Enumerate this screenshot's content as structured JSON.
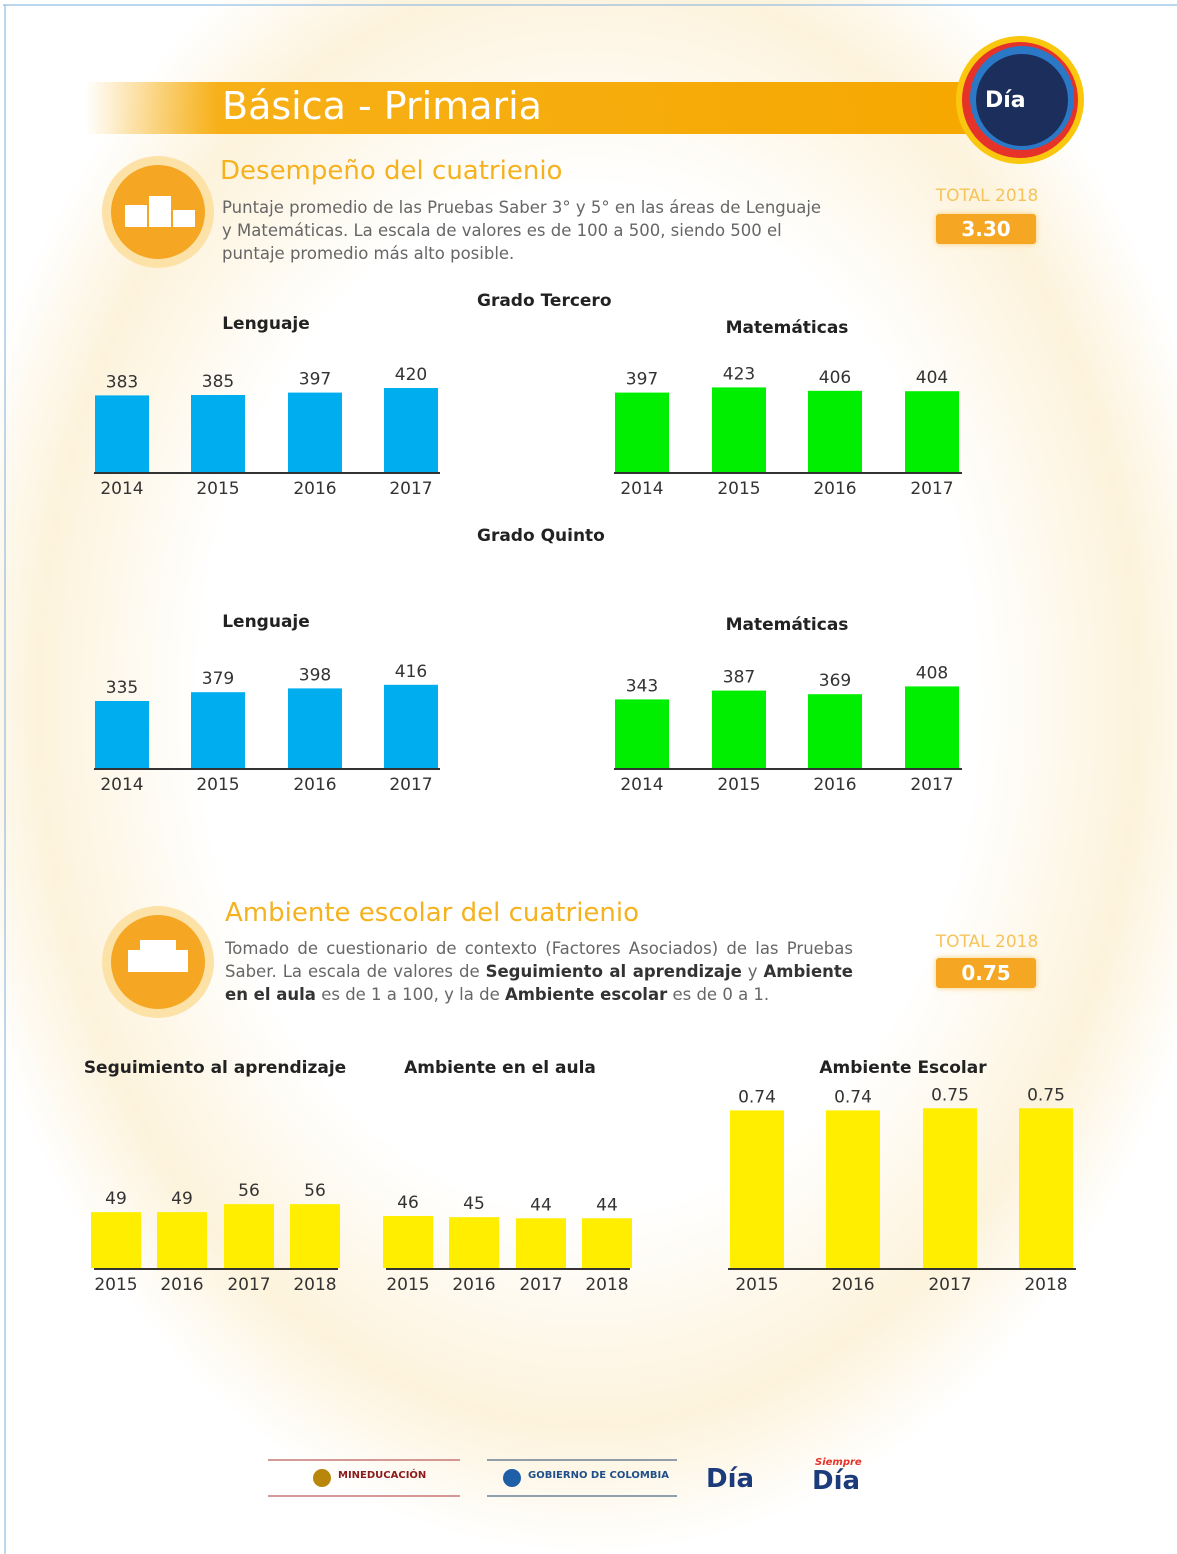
{
  "header": {
    "title": "Básica - Primaria",
    "logo": "Día"
  },
  "sections": [
    {
      "title": "Desempeño del cuatrienio",
      "description": [
        {
          "text": "Puntaje promedio de las Pruebas Saber 3° y 5° en las áreas de Lenguaje y Matemáticas. La escala de valores es de 100 a 500, siendo 500 el puntaje promedio más alto posible.",
          "bold": false
        }
      ],
      "total_label": "TOTAL 2018",
      "total_value": "3.30"
    },
    {
      "title": "Ambiente escolar del cuatrienio",
      "description": [
        {
          "text": "Tomado de cuestionario de contexto (Factores Asociados) de las Pruebas Saber. La escala de valores de ",
          "bold": false
        },
        {
          "text": "Seguimiento al aprendizaje",
          "bold": true
        },
        {
          "text": " y ",
          "bold": false
        },
        {
          "text": "Ambiente en el aula",
          "bold": true
        },
        {
          "text": " es de 1 a 100, y la de ",
          "bold": false
        },
        {
          "text": "Ambiente escolar",
          "bold": true
        },
        {
          "text": " es de 0 a 1.",
          "bold": false
        }
      ],
      "total_label": "TOTAL 2018",
      "total_value": "0.75"
    }
  ],
  "grades": [
    "Grado Tercero",
    "Grado Quinto"
  ],
  "chart_data": [
    {
      "type": "bar",
      "title": "Lenguaje",
      "categories": [
        "2014",
        "2015",
        "2016",
        "2017"
      ],
      "values": [
        383,
        385,
        397,
        420
      ],
      "color": "#00aeef"
    },
    {
      "type": "bar",
      "title": "Matemáticas",
      "categories": [
        "2014",
        "2015",
        "2016",
        "2017"
      ],
      "values": [
        397,
        423,
        406,
        404
      ],
      "color": "#00ee00"
    },
    {
      "type": "bar",
      "title": "Lenguaje",
      "categories": [
        "2014",
        "2015",
        "2016",
        "2017"
      ],
      "values": [
        335,
        379,
        398,
        416
      ],
      "color": "#00aeef"
    },
    {
      "type": "bar",
      "title": "Matemáticas",
      "categories": [
        "2014",
        "2015",
        "2016",
        "2017"
      ],
      "values": [
        343,
        387,
        369,
        408
      ],
      "color": "#00ee00"
    },
    {
      "type": "bar",
      "title": "Seguimiento al aprendizaje",
      "categories": [
        "2015",
        "2016",
        "2017",
        "2018"
      ],
      "values": [
        49,
        49,
        56,
        56
      ],
      "color": "#ffee00"
    },
    {
      "type": "bar",
      "title": "Ambiente en el aula",
      "categories": [
        "2015",
        "2016",
        "2017",
        "2018"
      ],
      "values": [
        46,
        45,
        44,
        44
      ],
      "color": "#ffee00"
    },
    {
      "type": "bar",
      "title": "Ambiente Escolar",
      "categories": [
        "2015",
        "2016",
        "2017",
        "2018"
      ],
      "values": [
        0.74,
        0.74,
        0.75,
        0.75
      ],
      "color": "#ffee00"
    }
  ],
  "footer": {
    "logos": [
      "MINEDUCACIÓN",
      "GOBIERNO DE COLOMBIA",
      "Día",
      "Siempre",
      "Día"
    ]
  }
}
